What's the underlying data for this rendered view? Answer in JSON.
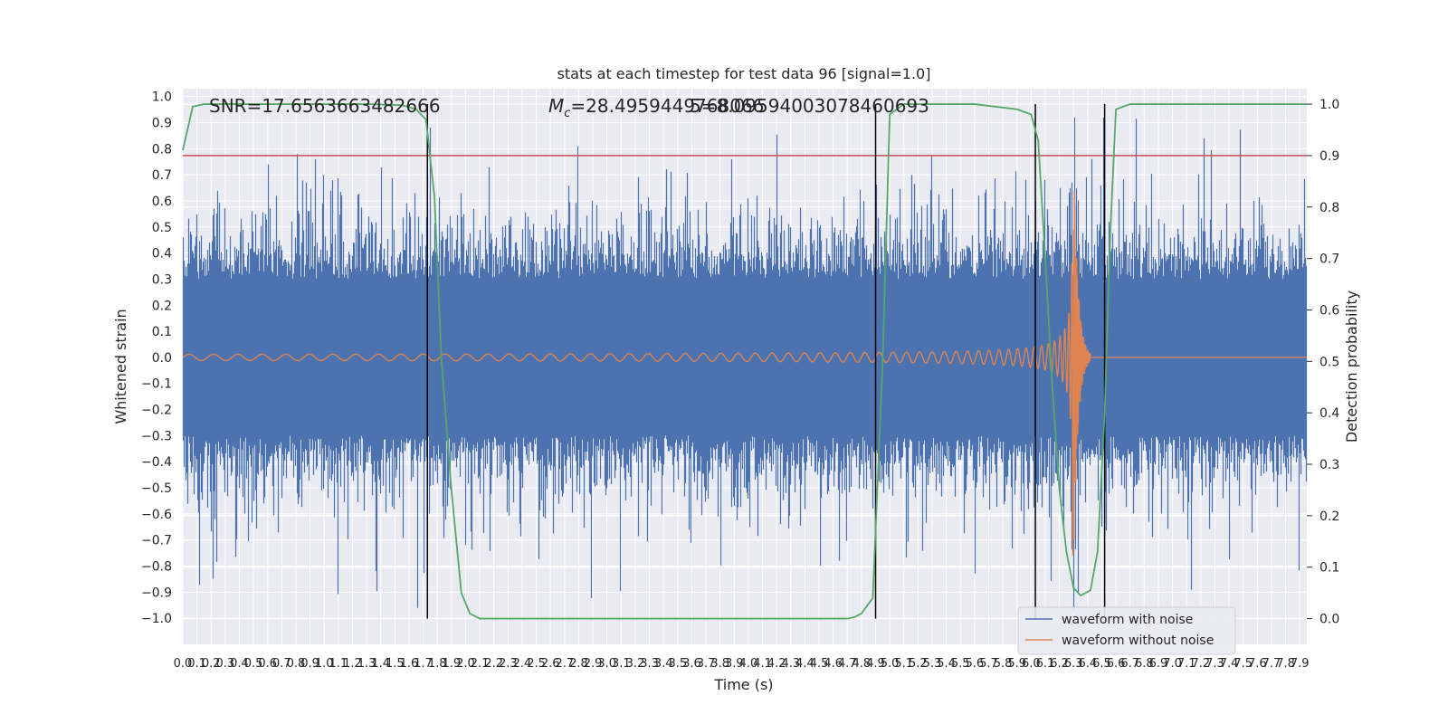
{
  "chart_data": {
    "type": "line",
    "title": "stats at each timestep for test data 96 [signal=1.0]",
    "xlabel": "Time (s)",
    "ylabel": "Whitened strain",
    "y2label": "Detection probability",
    "xlim": [
      0.0,
      7.95
    ],
    "ylim": [
      -1.1,
      1.03
    ],
    "y2lim": [
      -0.05,
      1.03
    ],
    "x_ticks": [
      "0.0",
      "0.1",
      "0.2",
      "0.3",
      "0.4",
      "0.5",
      "0.6",
      "0.7",
      "0.8",
      "0.9",
      "1.0",
      "1.1",
      "1.2",
      "1.3",
      "1.4",
      "1.5",
      "1.6",
      "1.7",
      "1.8",
      "1.9",
      "2.0",
      "2.1",
      "2.2",
      "2.3",
      "2.4",
      "2.5",
      "2.6",
      "2.7",
      "2.8",
      "2.9",
      "3.0",
      "3.1",
      "3.2",
      "3.3",
      "3.4",
      "3.5",
      "3.6",
      "3.7",
      "3.8",
      "3.9",
      "4.0",
      "4.1",
      "4.2",
      "4.3",
      "4.4",
      "4.5",
      "4.6",
      "4.7",
      "4.8",
      "4.9",
      "5.0",
      "5.1",
      "5.2",
      "5.3",
      "5.4",
      "5.5",
      "5.6",
      "5.7",
      "5.8",
      "5.9",
      "6.0",
      "6.1",
      "6.2",
      "6.3",
      "6.4",
      "6.5",
      "6.6",
      "6.7",
      "6.8",
      "6.9",
      "7.0",
      "7.1",
      "7.2",
      "7.3",
      "7.4",
      "7.5",
      "7.6",
      "7.7",
      "7.8",
      "7.9"
    ],
    "y_ticks": [
      "1.0",
      "0.9",
      "0.8",
      "0.7",
      "0.6",
      "0.5",
      "0.4",
      "0.3",
      "0.2",
      "0.1",
      "0.0",
      "−0.1",
      "−0.2",
      "−0.3",
      "−0.4",
      "−0.5",
      "−0.6",
      "−0.7",
      "−0.8",
      "−0.9",
      "−1.0"
    ],
    "y2_ticks": [
      "1.0",
      "0.9",
      "0.8",
      "0.7",
      "0.6",
      "0.5",
      "0.4",
      "0.3",
      "0.2",
      "0.1",
      "0.0"
    ],
    "threshold": 0.9,
    "vlines": [
      1.73,
      4.9,
      6.03,
      6.52
    ],
    "chirp": {
      "start": 0.0,
      "merger": 6.3,
      "ringdown_end": 6.42,
      "peak": 0.82
    },
    "probability_series": {
      "x": [
        0.0,
        0.07,
        0.15,
        0.3,
        0.6,
        1.0,
        1.3,
        1.55,
        1.65,
        1.72,
        1.78,
        1.83,
        1.9,
        1.97,
        2.03,
        2.1,
        2.2,
        2.4,
        3.0,
        4.0,
        4.5,
        4.7,
        4.75,
        4.8,
        4.88,
        4.95,
        5.0,
        5.1,
        5.3,
        5.6,
        5.9,
        6.0,
        6.05,
        6.1,
        6.15,
        6.2,
        6.25,
        6.3,
        6.35,
        6.42,
        6.47,
        6.52,
        6.56,
        6.6,
        6.7,
        7.0,
        7.5,
        7.95
      ],
      "values": [
        0.91,
        0.995,
        1.0,
        1.0,
        1.0,
        1.0,
        1.0,
        0.998,
        0.99,
        0.97,
        0.82,
        0.5,
        0.25,
        0.05,
        0.01,
        0.0,
        0.0,
        0.0,
        0.0,
        0.0,
        0.0,
        0.0,
        0.003,
        0.01,
        0.04,
        0.5,
        0.98,
        1.0,
        1.0,
        1.0,
        0.99,
        0.98,
        0.93,
        0.7,
        0.45,
        0.25,
        0.13,
        0.06,
        0.045,
        0.055,
        0.13,
        0.4,
        0.75,
        0.99,
        1.0,
        1.0,
        1.0,
        1.0
      ]
    },
    "annotations": [
      {
        "text": "SNR=17.6563663482666"
      },
      {
        "text_prefix": "M",
        "text_sub": "c",
        "text_rest": "=28.4959449768066"
      },
      {
        "text": "5=8.09594003078460693"
      }
    ],
    "legend": {
      "placement": "lower-right",
      "entries": [
        {
          "label": "waveform with noise",
          "color": "#4c72b0"
        },
        {
          "label": "waveform without noise",
          "color": "#dd8452"
        }
      ]
    },
    "colors": {
      "noise": "#4c72b0",
      "clean": "#dd8452",
      "probability": "#55a868",
      "threshold": "#c44e52",
      "vline": "#000000",
      "axes_bg": "#eaeaf2",
      "grid": "#ffffff"
    }
  }
}
